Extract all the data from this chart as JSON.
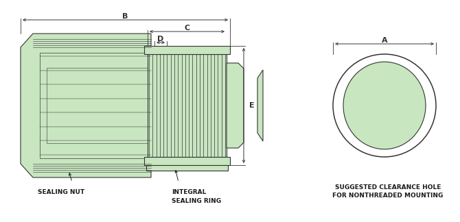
{
  "bg_color": "#ffffff",
  "part_fill": "#c8e6c0",
  "part_stroke": "#333333",
  "dim_color": "#333333",
  "label_color": "#1a1a1a",
  "title_text": "SUGGESTED CLEARANCE HOLE\nFOR NONTHREADED MOUNTING",
  "labels": {
    "B": "B",
    "C": "C",
    "D": "D",
    "E": "E",
    "A": "A"
  },
  "callouts": {
    "sealing_nut": "SEALING NUT",
    "integral": "INTEGRAL\nSEALING RING"
  }
}
